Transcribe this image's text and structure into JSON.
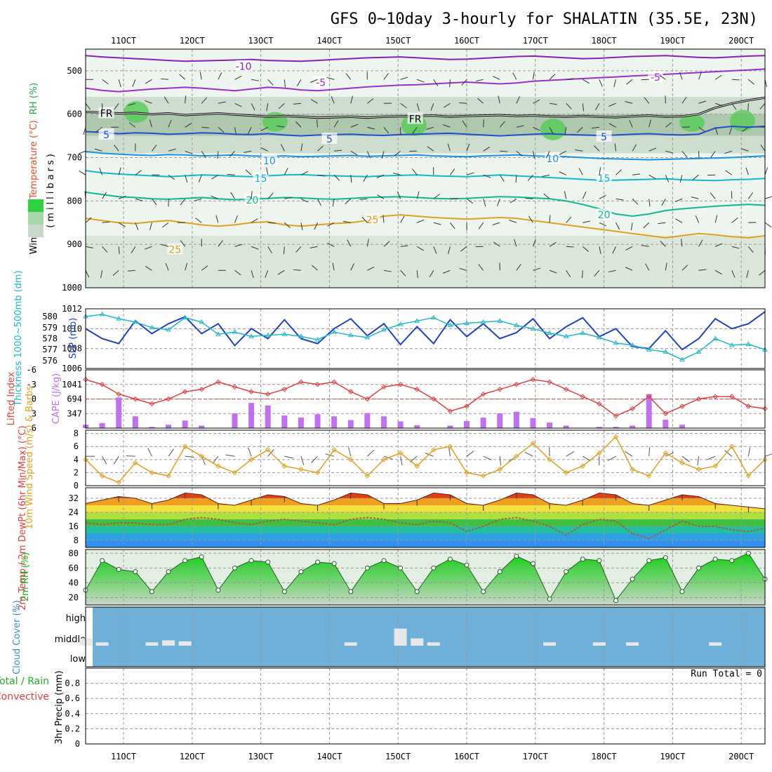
{
  "title": "GFS 0~10day 3-hourly for SHALATIN (35.5E, 23N)",
  "dates": [
    "11OCT",
    "12OCT",
    "13OCT",
    "14OCT",
    "15OCT",
    "16OCT",
    "17OCT",
    "18OCT",
    "19OCT",
    "20OCT"
  ],
  "chart_data": [
    {
      "type": "heatmap",
      "panel": "upper-air",
      "ylabel_parts": [
        "Wind (m/s)",
        "Temperature (°C)",
        "RH (%)"
      ],
      "yunits": "(millibars)",
      "yticks": [
        500,
        600,
        700,
        800,
        900,
        1000
      ],
      "ylim": [
        450,
        1000
      ],
      "isotherms": [
        {
          "label": "-10",
          "color": "#8a1fb8",
          "values": [
            465,
            468,
            470,
            472,
            474,
            476,
            478,
            477,
            476,
            475,
            474,
            476,
            477,
            478,
            476,
            474,
            472,
            470,
            469,
            468,
            470,
            472,
            474,
            473,
            471,
            469,
            467,
            466,
            468,
            470,
            472,
            471,
            469,
            467,
            466,
            465,
            467,
            469,
            470,
            468,
            466,
            465
          ]
        },
        {
          "label": "-5",
          "color": "#9b30c8",
          "values": [
            540,
            545,
            548,
            545,
            542,
            540,
            538,
            540,
            543,
            546,
            542,
            538,
            540,
            544,
            546,
            543,
            540,
            537,
            535,
            533,
            532,
            530,
            528,
            526,
            528,
            530,
            528,
            524,
            522,
            520,
            518,
            516,
            514,
            512,
            510,
            508,
            506,
            504,
            502,
            500,
            498,
            496
          ]
        },
        {
          "label": "FR",
          "color": "#000000",
          "values": [
            595,
            596,
            598,
            597,
            600,
            598,
            602,
            600,
            598,
            601,
            603,
            606,
            604,
            606,
            608,
            607,
            606,
            608,
            606,
            605,
            604,
            603,
            606,
            604,
            603,
            602,
            604,
            603,
            605,
            606,
            604,
            606,
            607,
            605,
            603,
            606,
            605,
            600,
            585,
            575,
            568,
            562
          ]
        },
        {
          "label": "5",
          "color": "#1f4fd0",
          "values": [
            640,
            642,
            645,
            643,
            644,
            646,
            645,
            643,
            644,
            646,
            647,
            645,
            648,
            650,
            648,
            647,
            646,
            648,
            649,
            647,
            646,
            645,
            644,
            646,
            648,
            650,
            648,
            646,
            645,
            647,
            648,
            649,
            648,
            646,
            645,
            647,
            648,
            646,
            632,
            628,
            630,
            628
          ]
        },
        {
          "label": "10",
          "color": "#1e90e0",
          "values": [
            686,
            690,
            692,
            694,
            695,
            693,
            694,
            696,
            695,
            694,
            696,
            697,
            696,
            698,
            697,
            696,
            695,
            697,
            696,
            695,
            694,
            696,
            697,
            698,
            696,
            695,
            694,
            696,
            697,
            698,
            700,
            702,
            703,
            704,
            705,
            704,
            703,
            702,
            701,
            700,
            698,
            696
          ]
        },
        {
          "label": "15",
          "color": "#10b8c8",
          "values": [
            730,
            735,
            738,
            740,
            742,
            744,
            742,
            740,
            741,
            743,
            744,
            742,
            740,
            739,
            741,
            742,
            743,
            744,
            742,
            741,
            740,
            742,
            743,
            744,
            742,
            740,
            742,
            744,
            746,
            748,
            750,
            752,
            752,
            751,
            750,
            749,
            751,
            752,
            753,
            751,
            750,
            748
          ]
        },
        {
          "label": "20",
          "color": "#10b890",
          "values": [
            780,
            785,
            790,
            792,
            795,
            796,
            794,
            792,
            795,
            797,
            796,
            794,
            792,
            793,
            795,
            796,
            794,
            792,
            791,
            790,
            792,
            794,
            795,
            794,
            792,
            790,
            791,
            793,
            795,
            800,
            808,
            818,
            830,
            835,
            830,
            822,
            818,
            815,
            812,
            810,
            808,
            810
          ]
        },
        {
          "label": "25",
          "color": "#e0a020",
          "values": [
            840,
            845,
            850,
            852,
            848,
            845,
            850,
            855,
            858,
            855,
            850,
            848,
            855,
            858,
            855,
            852,
            850,
            845,
            835,
            832,
            835,
            838,
            840,
            842,
            840,
            838,
            840,
            845,
            850,
            855,
            860,
            865,
            870,
            875,
            880,
            885,
            880,
            875,
            878,
            882,
            885,
            880
          ]
        }
      ],
      "isotherm_labels": [
        {
          "text": "-10",
          "color": "#8a1fb8",
          "x": "12OCT 18h",
          "p": "490mb"
        },
        {
          "text": "-5",
          "color": "#9b30c8",
          "x": "13OCT 21h",
          "p": "527mb"
        },
        {
          "text": "-5",
          "color": "#9b30c8",
          "x": "18OCT 18h",
          "p": "515mb"
        },
        {
          "text": "FR",
          "color": "#000000",
          "x": "10OCT 18h",
          "p": "598mb"
        },
        {
          "text": "FR",
          "color": "#000000",
          "x": "15OCT 06h",
          "p": "611mb"
        },
        {
          "text": "5",
          "color": "#1f4fd0",
          "x": "10OCT 18h",
          "p": "647mb"
        },
        {
          "text": "5",
          "color": "#1f4fd0",
          "x": "14OCT 00h",
          "p": "657mb"
        },
        {
          "text": "5",
          "color": "#1f4fd0",
          "x": "18OCT 00h",
          "p": "652mb"
        },
        {
          "text": "10",
          "color": "#1e90e0",
          "x": "13OCT 03h",
          "p": "707mb"
        },
        {
          "text": "10",
          "color": "#1e90e0",
          "x": "17OCT 06h",
          "p": "702mb"
        },
        {
          "text": "15",
          "color": "#10b8c8",
          "x": "13OCT 00h",
          "p": "748mb"
        },
        {
          "text": "15",
          "color": "#10b8c8",
          "x": "18OCT 00h",
          "p": "748mb"
        },
        {
          "text": "20",
          "color": "#10b890",
          "x": "12OCT 21h",
          "p": "798mb"
        },
        {
          "text": "20",
          "color": "#10b890",
          "x": "18OCT 00h",
          "p": "832mb"
        },
        {
          "text": "25",
          "color": "#e0a020",
          "x": "14OCT 15h",
          "p": "843mb"
        },
        {
          "text": "25",
          "color": "#e0a020",
          "x": "11OCT 18h",
          "p": "912mb"
        }
      ],
      "rh_legend_colors": [
        "#2fd040",
        "#a8d8a8",
        "#c8d8c8"
      ]
    },
    {
      "type": "line",
      "panel": "slp-thickness",
      "ylabel_left": "Thickness 1000~500mb (dm)",
      "ylabel_right": "SLP (mb)",
      "left_ticks": [
        576,
        577,
        578,
        579,
        580
      ],
      "right_ticks": [
        1008,
        1010,
        1012
      ],
      "right_bottom_label": "1006",
      "series": [
        {
          "name": "SLP (mb)",
          "color": "#2040c0",
          "values": [
            1010.0,
            1009.0,
            1008.5,
            1010.8,
            1009.5,
            1010.5,
            1011.2,
            1009.5,
            1010.5,
            1008.3,
            1010.0,
            1009.0,
            1010.9,
            1009.0,
            1008.5,
            1010.0,
            1011.0,
            1009.3,
            1010.5,
            1008.4,
            1010.2,
            1008.5,
            1010.9,
            1009.2,
            1010.5,
            1009.0,
            1009.6,
            1011.0,
            1009.0,
            1010.2,
            1011.1,
            1009.2,
            1010.0,
            1008.2,
            1008.0,
            1009.8,
            1007.9,
            1009.0,
            1011.0,
            1010.0,
            1010.5,
            1011.7
          ]
        },
        {
          "name": "Thickness 1000~500mb (dm)",
          "color": "#20b8c8",
          "values": [
            580.0,
            580.2,
            579.8,
            579.5,
            579.0,
            578.8,
            579.9,
            579.5,
            578.4,
            578.6,
            578.2,
            578.3,
            578.4,
            578.2,
            577.9,
            578.6,
            578.3,
            578.1,
            578.8,
            579.3,
            579.6,
            579.9,
            579.2,
            579.4,
            579.5,
            579.6,
            579.2,
            578.9,
            578.5,
            578.2,
            578.5,
            578.1,
            577.6,
            577.4,
            577.0,
            576.8,
            576.1,
            576.8,
            578.0,
            577.4,
            577.5,
            577.0
          ]
        }
      ]
    },
    {
      "type": "bar",
      "panel": "cape-li",
      "ylabel_left": "Lifted Index",
      "ylabel_right": "CAPE (J/kg)",
      "li_ticks": [
        -6,
        -3,
        0,
        3,
        6
      ],
      "li_tick_labels": [
        "-6",
        "-3",
        "0",
        "3",
        "6"
      ],
      "cape_ticks": [
        347,
        694,
        1041
      ],
      "cape_values": [
        80,
        120,
        730,
        280,
        30,
        80,
        180,
        60,
        0,
        350,
        600,
        540,
        300,
        250,
        330,
        280,
        190,
        360,
        280,
        160,
        70,
        0,
        60,
        170,
        250,
        350,
        390,
        240,
        130,
        60,
        0,
        30,
        30,
        60,
        810,
        200,
        80,
        0,
        0,
        0,
        0,
        0
      ],
      "li_values": [
        -4.0,
        -3.0,
        -1.0,
        0.0,
        1.0,
        0.0,
        -1.5,
        -2.0,
        -3.5,
        -2.5,
        -1.5,
        -1.0,
        -2.0,
        -3.5,
        -3.0,
        -3.5,
        -1.5,
        0.0,
        -2.5,
        -3.0,
        -2.0,
        0.0,
        2.5,
        1.5,
        -1.0,
        -2.0,
        -3.0,
        -4.0,
        -3.5,
        -2.0,
        -0.5,
        1.0,
        3.5,
        2.0,
        -0.5,
        3.0,
        1.5,
        0.0,
        -0.5,
        -0.5,
        1.5,
        2.0
      ]
    },
    {
      "type": "line",
      "panel": "wind10m",
      "ylabel": "10m Wind Speed (m/s) & Barbs",
      "yticks": [
        0,
        2,
        4,
        6,
        8
      ],
      "series": [
        {
          "name": "10m Wind Speed",
          "color": "#e0a020",
          "values": [
            4.0,
            1.5,
            0.5,
            3.5,
            2.0,
            1.5,
            6.0,
            4.5,
            3.0,
            2.0,
            4.0,
            5.5,
            3.0,
            2.5,
            2.0,
            5.5,
            4.0,
            1.5,
            4.0,
            5.0,
            3.0,
            5.5,
            6.0,
            2.0,
            1.5,
            2.5,
            4.5,
            6.5,
            4.0,
            2.0,
            3.0,
            5.0,
            7.5,
            2.5,
            1.5,
            5.0,
            3.5,
            2.5,
            3.0,
            6.0,
            1.5,
            4.0
          ]
        }
      ]
    },
    {
      "type": "area",
      "panel": "temp2m",
      "ylabel": "2m Temp / 2m DewPt (6hr Min/Max) (°C)",
      "yticks": [
        8,
        16,
        24,
        32
      ],
      "series": [
        {
          "name": "2m Temp",
          "color": "#e06010",
          "values": [
            29,
            31,
            33,
            32,
            29,
            31,
            35,
            34,
            29,
            28,
            31,
            34,
            33,
            29,
            28,
            31,
            35,
            34,
            29,
            29,
            31,
            35,
            34,
            29,
            28,
            31,
            35,
            34,
            29,
            28,
            31,
            35,
            34,
            29,
            28,
            31,
            34,
            33,
            29,
            28,
            27,
            26
          ]
        },
        {
          "name": "2m DewPt",
          "color": "#a06040",
          "values": [
            18,
            17,
            18,
            18,
            17,
            17,
            20,
            21,
            20,
            18,
            17,
            19,
            20,
            19,
            18,
            17,
            20,
            21,
            20,
            18,
            17,
            19,
            18,
            13,
            16,
            20,
            21,
            19,
            16,
            11,
            17,
            20,
            19,
            12,
            9,
            14,
            19,
            16,
            16,
            14,
            13,
            15
          ]
        }
      ]
    },
    {
      "type": "area",
      "panel": "rh2m",
      "ylabel": "2m RH (%)",
      "yticks": [
        20,
        40,
        60,
        80
      ],
      "series": [
        {
          "name": "2m RH",
          "color": "#20c020",
          "values": [
            30,
            70,
            58,
            55,
            28,
            55,
            70,
            75,
            30,
            60,
            70,
            68,
            28,
            55,
            68,
            66,
            28,
            60,
            70,
            60,
            28,
            60,
            72,
            64,
            28,
            55,
            76,
            66,
            18,
            55,
            72,
            70,
            16,
            45,
            70,
            74,
            28,
            60,
            72,
            70,
            80,
            45
          ]
        }
      ]
    },
    {
      "type": "bar",
      "panel": "cloud",
      "ylabel": "Cloud Cover (%)",
      "levels": [
        "high",
        "middle",
        "low"
      ],
      "middle_values": [
        30,
        10,
        0,
        0,
        10,
        20,
        15,
        0,
        0,
        0,
        0,
        0,
        0,
        0,
        0,
        0,
        10,
        0,
        0,
        80,
        30,
        10,
        0,
        0,
        0,
        0,
        0,
        0,
        10,
        0,
        0,
        10,
        0,
        10,
        0,
        0,
        0,
        0,
        10,
        0,
        0,
        0
      ]
    },
    {
      "type": "bar",
      "panel": "precip",
      "ylabel": "3hr Precip (mm)",
      "legend": [
        "Total / Rain",
        "Convective"
      ],
      "yticks": [
        0,
        0.2,
        0.4,
        0.6,
        0.8
      ],
      "run_total": "Run Total = 0",
      "values": [
        0,
        0,
        0,
        0,
        0,
        0,
        0,
        0,
        0,
        0,
        0,
        0,
        0,
        0,
        0,
        0,
        0,
        0,
        0,
        0,
        0,
        0,
        0,
        0,
        0,
        0,
        0,
        0,
        0,
        0,
        0,
        0,
        0,
        0,
        0,
        0,
        0,
        0,
        0,
        0,
        0,
        0
      ]
    }
  ]
}
